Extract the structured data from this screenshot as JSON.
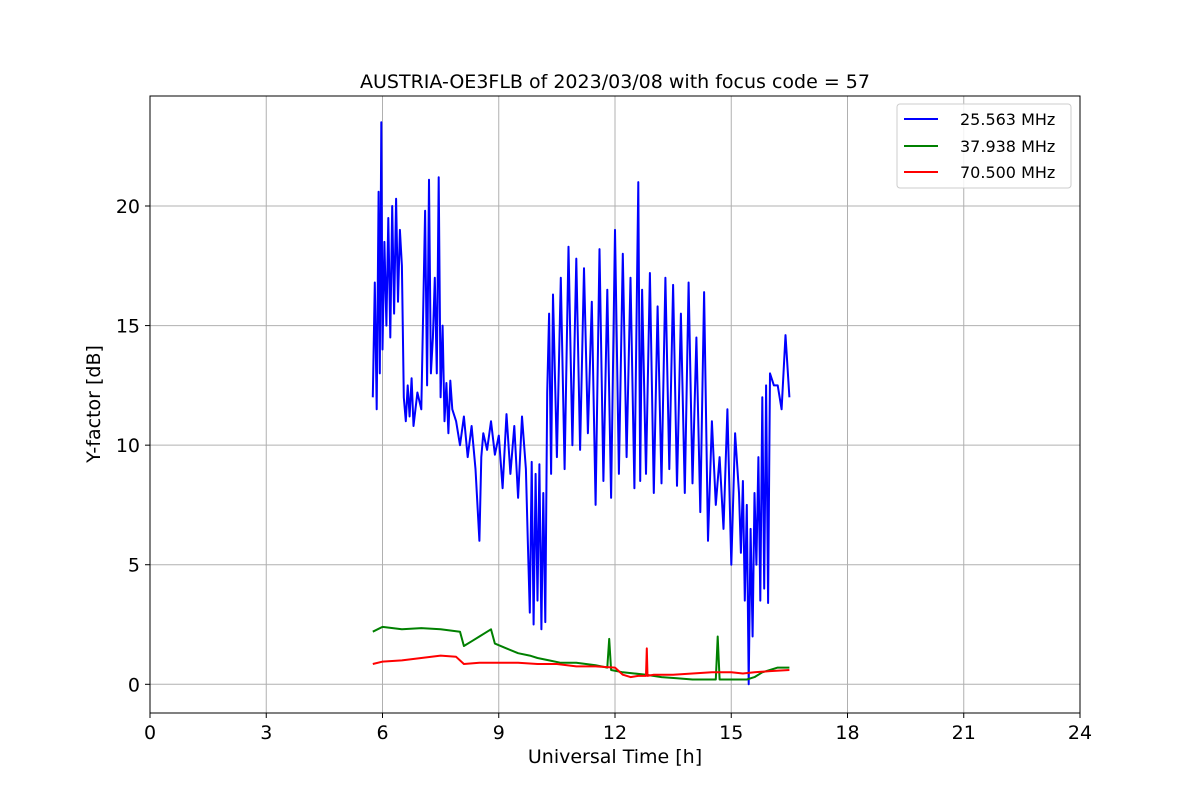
{
  "chart_data": {
    "type": "line",
    "title": "AUSTRIA-OE3FLB of 2023/03/08 with focus code = 57",
    "xlabel": "Universal Time [h]",
    "ylabel": "Y-factor [dB]",
    "xlim": [
      0,
      24
    ],
    "ylim": [
      -1.2,
      24.6
    ],
    "xticks": [
      0,
      3,
      6,
      9,
      12,
      15,
      18,
      21,
      24
    ],
    "yticks": [
      0,
      5,
      10,
      15,
      20
    ],
    "grid": true,
    "legend_position": "top-right",
    "series": [
      {
        "name": "25.563 MHz",
        "color": "#0000ff",
        "x": [
          5.75,
          5.8,
          5.85,
          5.9,
          5.93,
          5.97,
          6.0,
          6.05,
          6.1,
          6.15,
          6.2,
          6.25,
          6.3,
          6.35,
          6.4,
          6.45,
          6.5,
          6.55,
          6.6,
          6.65,
          6.7,
          6.75,
          6.8,
          6.9,
          7.0,
          7.1,
          7.15,
          7.2,
          7.25,
          7.3,
          7.35,
          7.4,
          7.45,
          7.5,
          7.55,
          7.6,
          7.65,
          7.7,
          7.75,
          7.8,
          7.9,
          8.0,
          8.1,
          8.2,
          8.3,
          8.4,
          8.5,
          8.55,
          8.6,
          8.7,
          8.8,
          8.9,
          9.0,
          9.1,
          9.2,
          9.3,
          9.4,
          9.5,
          9.6,
          9.7,
          9.75,
          9.8,
          9.85,
          9.9,
          9.95,
          10.0,
          10.05,
          10.1,
          10.15,
          10.2,
          10.25,
          10.3,
          10.35,
          10.4,
          10.5,
          10.6,
          10.7,
          10.8,
          10.9,
          11.0,
          11.1,
          11.2,
          11.3,
          11.4,
          11.5,
          11.6,
          11.7,
          11.8,
          11.9,
          12.0,
          12.1,
          12.2,
          12.3,
          12.4,
          12.5,
          12.6,
          12.65,
          12.7,
          12.8,
          12.9,
          13.0,
          13.1,
          13.2,
          13.3,
          13.4,
          13.5,
          13.6,
          13.7,
          13.8,
          13.9,
          14.0,
          14.1,
          14.2,
          14.3,
          14.4,
          14.5,
          14.6,
          14.7,
          14.8,
          14.9,
          15.0,
          15.1,
          15.2,
          15.25,
          15.3,
          15.35,
          15.4,
          15.45,
          15.5,
          15.55,
          15.6,
          15.65,
          15.7,
          15.75,
          15.8,
          15.85,
          15.9,
          15.95,
          16.0,
          16.1,
          16.2,
          16.3,
          16.4,
          16.5
        ],
        "y": [
          12.0,
          16.8,
          11.5,
          20.6,
          13.0,
          23.5,
          14.0,
          18.5,
          15.0,
          19.5,
          14.5,
          20.0,
          15.5,
          20.3,
          16.0,
          19.0,
          17.5,
          12.0,
          11.0,
          12.5,
          11.2,
          12.8,
          10.8,
          12.2,
          11.5,
          19.8,
          12.5,
          21.1,
          13.0,
          14.5,
          17.0,
          13.0,
          21.2,
          12.0,
          15.0,
          11.0,
          12.6,
          10.5,
          12.7,
          11.5,
          11.0,
          10.0,
          11.2,
          9.5,
          10.8,
          9.0,
          6.0,
          9.5,
          10.5,
          9.8,
          11.0,
          9.6,
          10.4,
          8.2,
          11.3,
          8.8,
          10.8,
          7.8,
          11.2,
          9.0,
          6.0,
          3.0,
          9.3,
          2.5,
          8.8,
          3.5,
          9.2,
          2.3,
          8.0,
          2.6,
          12.2,
          15.5,
          8.8,
          16.3,
          9.5,
          17.0,
          9.0,
          18.3,
          10.0,
          17.8,
          9.8,
          17.4,
          10.5,
          16.0,
          7.5,
          18.2,
          8.5,
          16.5,
          7.8,
          19.0,
          8.8,
          18.0,
          9.5,
          17.0,
          8.2,
          21.0,
          8.5,
          16.5,
          8.8,
          17.2,
          8.0,
          15.8,
          8.4,
          17.0,
          9.0,
          16.7,
          8.3,
          15.5,
          8.0,
          16.8,
          8.4,
          14.5,
          7.2,
          16.4,
          6.0,
          11.0,
          7.5,
          9.5,
          6.5,
          11.5,
          5.0,
          10.5,
          8.0,
          5.5,
          8.5,
          3.5,
          7.5,
          0.0,
          6.5,
          2.0,
          8.0,
          5.0,
          9.5,
          3.5,
          12.0,
          4.0,
          12.5,
          3.4,
          13.0,
          12.5,
          12.5,
          11.5,
          14.6,
          12.0
        ]
      },
      {
        "name": "37.938 MHz",
        "color": "#008000",
        "x": [
          5.75,
          6.0,
          6.5,
          7.0,
          7.5,
          8.0,
          8.1,
          8.3,
          8.5,
          8.8,
          8.9,
          9.2,
          9.5,
          9.8,
          10.0,
          10.3,
          10.6,
          11.0,
          11.5,
          11.8,
          11.85,
          11.9,
          12.2,
          12.5,
          12.8,
          13.2,
          13.6,
          14.0,
          14.4,
          14.6,
          14.65,
          14.7,
          15.0,
          15.2,
          15.4,
          15.6,
          15.8,
          16.0,
          16.2,
          16.5
        ],
        "y": [
          2.2,
          2.4,
          2.3,
          2.35,
          2.3,
          2.2,
          1.6,
          1.8,
          2.0,
          2.3,
          1.7,
          1.5,
          1.3,
          1.2,
          1.1,
          1.0,
          0.9,
          0.9,
          0.8,
          0.7,
          1.9,
          0.6,
          0.5,
          0.45,
          0.4,
          0.3,
          0.25,
          0.2,
          0.2,
          0.2,
          2.0,
          0.2,
          0.2,
          0.2,
          0.2,
          0.3,
          0.5,
          0.6,
          0.7,
          0.7
        ]
      },
      {
        "name": "70.500 MHz",
        "color": "#ff0000",
        "x": [
          5.75,
          6.0,
          6.5,
          7.0,
          7.5,
          7.9,
          8.1,
          8.5,
          9.0,
          9.5,
          10.0,
          10.5,
          11.0,
          11.5,
          12.0,
          12.2,
          12.4,
          12.6,
          12.8,
          12.82,
          12.84,
          13.0,
          13.5,
          14.0,
          14.5,
          15.0,
          15.3,
          15.6,
          16.0,
          16.5
        ],
        "y": [
          0.85,
          0.95,
          1.0,
          1.1,
          1.2,
          1.15,
          0.85,
          0.9,
          0.9,
          0.9,
          0.85,
          0.85,
          0.75,
          0.75,
          0.7,
          0.4,
          0.3,
          0.35,
          0.35,
          1.5,
          0.35,
          0.4,
          0.4,
          0.45,
          0.5,
          0.5,
          0.45,
          0.5,
          0.55,
          0.6
        ]
      }
    ]
  }
}
